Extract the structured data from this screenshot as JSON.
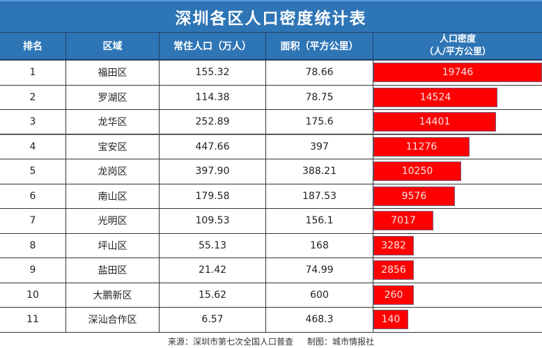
{
  "title": "深圳各区人口密度统计表",
  "header": {
    "rank": "排名",
    "district": "区域",
    "population": "常住人口（万人）",
    "area": "面积（平方公里）",
    "density_line1": "人口密度",
    "density_line2": "（人/平方公里）"
  },
  "rows": [
    {
      "rank": "1",
      "district": "福田区",
      "population": "155.32",
      "area": "78.66",
      "density": "19746"
    },
    {
      "rank": "2",
      "district": "罗湖区",
      "population": "114.38",
      "area": "78.75",
      "density": "14524"
    },
    {
      "rank": "3",
      "district": "龙华区",
      "population": "252.89",
      "area": "175.6",
      "density": "14401"
    },
    {
      "rank": "4",
      "district": "宝安区",
      "population": "447.66",
      "area": "397",
      "density": "11276"
    },
    {
      "rank": "5",
      "district": "龙岗区",
      "population": "397.90",
      "area": "388.21",
      "density": "10250"
    },
    {
      "rank": "6",
      "district": "南山区",
      "population": "179.58",
      "area": "187.53",
      "density": "9576"
    },
    {
      "rank": "7",
      "district": "光明区",
      "population": "109.53",
      "area": "156.1",
      "density": "7017"
    },
    {
      "rank": "8",
      "district": "坪山区",
      "population": "55.13",
      "area": "168",
      "density": "3282"
    },
    {
      "rank": "9",
      "district": "盐田区",
      "population": "21.42",
      "area": "74.99",
      "density": "2856"
    },
    {
      "rank": "10",
      "district": "大鹏新区",
      "population": "15.62",
      "area": "600",
      "density": "260"
    },
    {
      "rank": "11",
      "district": "深汕合作区",
      "population": "6.57",
      "area": "468.3",
      "density": "140"
    }
  ],
  "footer": {
    "source": "来源：深圳市第七次全国人口普查",
    "credit": "制图：城市情报社"
  },
  "colors": {
    "header_blue": "#2E75B6",
    "bar_red": "#FF0000"
  },
  "chart_data": {
    "type": "table",
    "title": "深圳各区人口密度统计表",
    "columns": [
      "排名",
      "区域",
      "常住人口（万人）",
      "面积（平方公里）",
      "人口密度（人/平方公里）"
    ],
    "categories": [
      "福田区",
      "罗湖区",
      "龙华区",
      "宝安区",
      "龙岗区",
      "南山区",
      "光明区",
      "坪山区",
      "盐田区",
      "大鹏新区",
      "深汕合作区"
    ],
    "series": [
      {
        "name": "常住人口（万人）",
        "values": [
          155.32,
          114.38,
          252.89,
          447.66,
          397.9,
          179.58,
          109.53,
          55.13,
          21.42,
          15.62,
          6.57
        ]
      },
      {
        "name": "面积（平方公里）",
        "values": [
          78.66,
          78.75,
          175.6,
          397,
          388.21,
          187.53,
          156.1,
          168,
          74.99,
          600,
          468.3
        ]
      },
      {
        "name": "人口密度（人/平方公里）",
        "values": [
          19746,
          14524,
          14401,
          11276,
          10250,
          9576,
          7017,
          3282,
          2856,
          260,
          140
        ]
      }
    ],
    "bar_column": "人口密度（人/平方公里）",
    "annotations": [
      "来源：深圳市第七次全国人口普查",
      "制图：城市情报社"
    ]
  }
}
